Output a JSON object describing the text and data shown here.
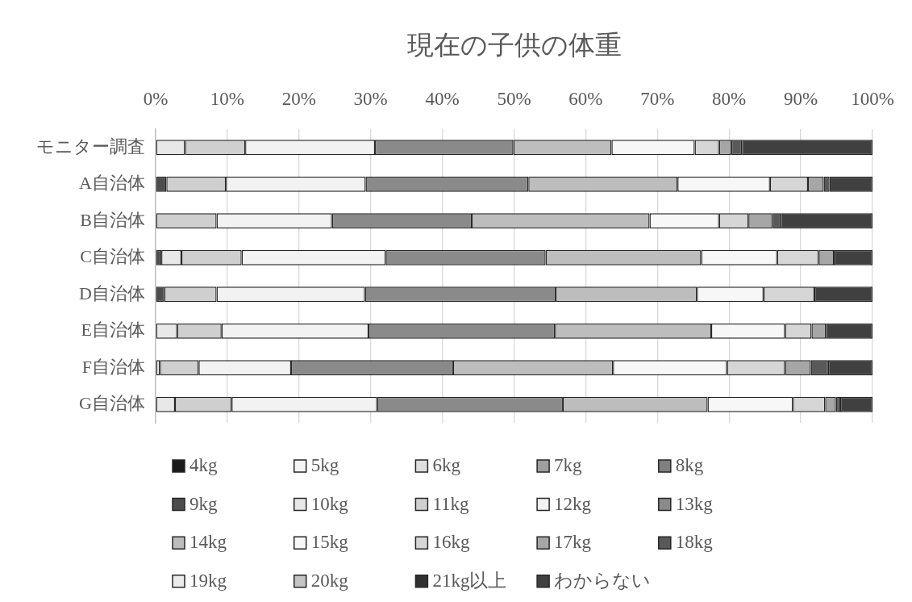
{
  "chart_data": {
    "type": "bar",
    "title": "現在の子供の体重",
    "orientation": "horizontal",
    "stacked": true,
    "grid": "x",
    "legend": "bottom",
    "categories": [
      "モニター調査",
      "A自治体",
      "B自治体",
      "C自治体",
      "D自治体",
      "E自治体",
      "F自治体",
      "G自治体"
    ],
    "xlim": [
      0,
      100
    ],
    "xticks": [
      {
        "value": 0,
        "label": "0%"
      },
      {
        "value": 10,
        "label": "10%"
      },
      {
        "value": 20,
        "label": "20%"
      },
      {
        "value": 30,
        "label": "30%"
      },
      {
        "value": 40,
        "label": "40%"
      },
      {
        "value": 50,
        "label": "50%"
      },
      {
        "value": 60,
        "label": "60%"
      },
      {
        "value": 70,
        "label": "70%"
      },
      {
        "value": 80,
        "label": "80%"
      },
      {
        "value": 90,
        "label": "90%"
      },
      {
        "value": 100,
        "label": "100%"
      }
    ],
    "series": [
      {
        "name": "4kg",
        "color": "#1a1a1a",
        "values": [
          0,
          0,
          0,
          0,
          0,
          0,
          0,
          0
        ]
      },
      {
        "name": "5kg",
        "color": "#f5f5f5",
        "values": [
          0,
          0,
          0,
          0,
          0,
          0,
          0,
          0
        ]
      },
      {
        "name": "6kg",
        "color": "#dedede",
        "values": [
          0,
          0,
          0,
          0,
          0,
          0,
          0,
          0
        ]
      },
      {
        "name": "7kg",
        "color": "#9e9e9e",
        "values": [
          0,
          0,
          0,
          0,
          0,
          0,
          0,
          0
        ]
      },
      {
        "name": "8kg",
        "color": "#7f7f7f",
        "values": [
          0,
          0,
          0,
          0,
          0,
          0,
          0,
          0
        ]
      },
      {
        "name": "9kg",
        "color": "#4d4d4d",
        "values": [
          0,
          1.5,
          0,
          0.8,
          1.2,
          0,
          0,
          0
        ]
      },
      {
        "name": "10kg",
        "color": "#e8e8e8",
        "values": [
          4.1,
          0,
          0,
          2.8,
          0,
          3.0,
          0.6,
          2.7
        ]
      },
      {
        "name": "11kg",
        "color": "#cfcfcf",
        "values": [
          8.4,
          8.3,
          8.5,
          8.4,
          7.3,
          6.2,
          5.4,
          7.9
        ]
      },
      {
        "name": "12kg",
        "color": "#f2f2f2",
        "values": [
          18.1,
          19.5,
          16.1,
          20.1,
          20.7,
          20.5,
          12.9,
          20.3
        ]
      },
      {
        "name": "13kg",
        "color": "#8a8a8a",
        "values": [
          19.3,
          22.7,
          19.5,
          22.3,
          26.6,
          26.0,
          22.6,
          25.9
        ]
      },
      {
        "name": "14kg",
        "color": "#bdbdbd",
        "values": [
          13.7,
          20.8,
          24.8,
          21.7,
          19.7,
          21.8,
          22.3,
          20.2
        ]
      },
      {
        "name": "15kg",
        "color": "#f7f7f7",
        "values": [
          11.6,
          12.9,
          9.7,
          10.6,
          9.3,
          10.3,
          15.9,
          11.9
        ]
      },
      {
        "name": "16kg",
        "color": "#d6d6d6",
        "values": [
          3.4,
          5.3,
          4.1,
          5.8,
          7.1,
          3.7,
          8.1,
          4.5
        ]
      },
      {
        "name": "17kg",
        "color": "#a6a6a6",
        "values": [
          1.7,
          2.2,
          3.4,
          2.1,
          0,
          2.0,
          3.6,
          1.5
        ]
      },
      {
        "name": "18kg",
        "color": "#595959",
        "values": [
          1.5,
          0.8,
          1.1,
          0,
          0,
          0,
          2.4,
          0.6
        ]
      },
      {
        "name": "19kg",
        "color": "#ebebeb",
        "values": [
          0,
          0,
          0,
          0,
          0,
          0,
          0,
          0
        ]
      },
      {
        "name": "20kg",
        "color": "#c4c4c4",
        "values": [
          0,
          0,
          0,
          0,
          0,
          0,
          0,
          0
        ]
      },
      {
        "name": "21kg以上",
        "color": "#303030",
        "values": [
          0,
          0,
          0,
          0,
          0,
          0,
          0,
          0
        ]
      },
      {
        "name": "わからない",
        "color": "#404040",
        "values": [
          18.2,
          6.0,
          12.8,
          5.4,
          8.1,
          6.5,
          6.2,
          4.5
        ]
      }
    ]
  }
}
